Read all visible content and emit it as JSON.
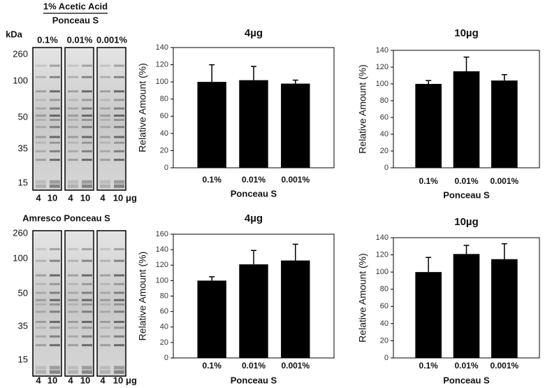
{
  "blots": [
    {
      "header": "1% Acetic Acid",
      "subheader": "Ponceau S",
      "unit": "kDa",
      "lanes": [
        "0.1%",
        "0.01%",
        "0.001%"
      ],
      "markers": [
        260,
        100,
        50,
        35,
        15
      ],
      "loads": [
        "4",
        "10",
        "4",
        "10",
        "4",
        "10"
      ],
      "load_unit": "μg"
    },
    {
      "header": "Amresco Ponceau S",
      "markers": [
        260,
        100,
        50,
        35,
        15
      ],
      "loads": [
        "4",
        "10",
        "4",
        "10",
        "4",
        "10"
      ],
      "load_unit": "μg"
    }
  ],
  "chart_data": [
    {
      "type": "bar",
      "title": "4µg",
      "y_label": "Relative Amount (%)",
      "x_label": "Ponceau S",
      "categories": [
        "0.1%",
        "0.01%",
        "0.001%"
      ],
      "values": [
        100,
        102,
        98
      ],
      "errors": [
        20,
        16,
        4
      ],
      "color": "#000000",
      "ylim": [
        0,
        140
      ],
      "yticks": [
        0,
        20,
        40,
        60,
        80,
        100,
        120,
        140
      ]
    },
    {
      "type": "bar",
      "title": "10µg",
      "y_label": "Relative Amount (%)",
      "x_label": "Ponceau S",
      "categories": [
        "0.1%",
        "0.01%",
        "0.001%"
      ],
      "values": [
        100,
        115,
        104
      ],
      "errors": [
        4,
        17,
        7
      ],
      "color": "#000000",
      "ylim": [
        0,
        140
      ],
      "yticks": [
        0,
        20,
        40,
        60,
        80,
        100,
        120,
        140
      ]
    },
    {
      "type": "bar",
      "title": "4µg",
      "y_label": "Relative Amount (%)",
      "x_label": "Ponceau S",
      "categories": [
        "0.1%",
        "0.01%",
        "0.001%"
      ],
      "values": [
        100,
        121,
        126
      ],
      "errors": [
        5,
        18,
        21
      ],
      "color": "#000000",
      "ylim": [
        0,
        160
      ],
      "yticks": [
        0,
        20,
        40,
        60,
        80,
        100,
        120,
        140,
        160
      ]
    },
    {
      "type": "bar",
      "title": "10µg",
      "y_label": "Relative Amount (%)",
      "x_label": "Ponceau S",
      "categories": [
        "0.1%",
        "0.01%",
        "0.001%"
      ],
      "values": [
        100,
        121,
        115
      ],
      "errors": [
        17,
        10,
        18
      ],
      "color": "#000000",
      "ylim": [
        0,
        140
      ],
      "yticks": [
        0,
        20,
        40,
        60,
        80,
        100,
        120,
        140
      ]
    }
  ]
}
